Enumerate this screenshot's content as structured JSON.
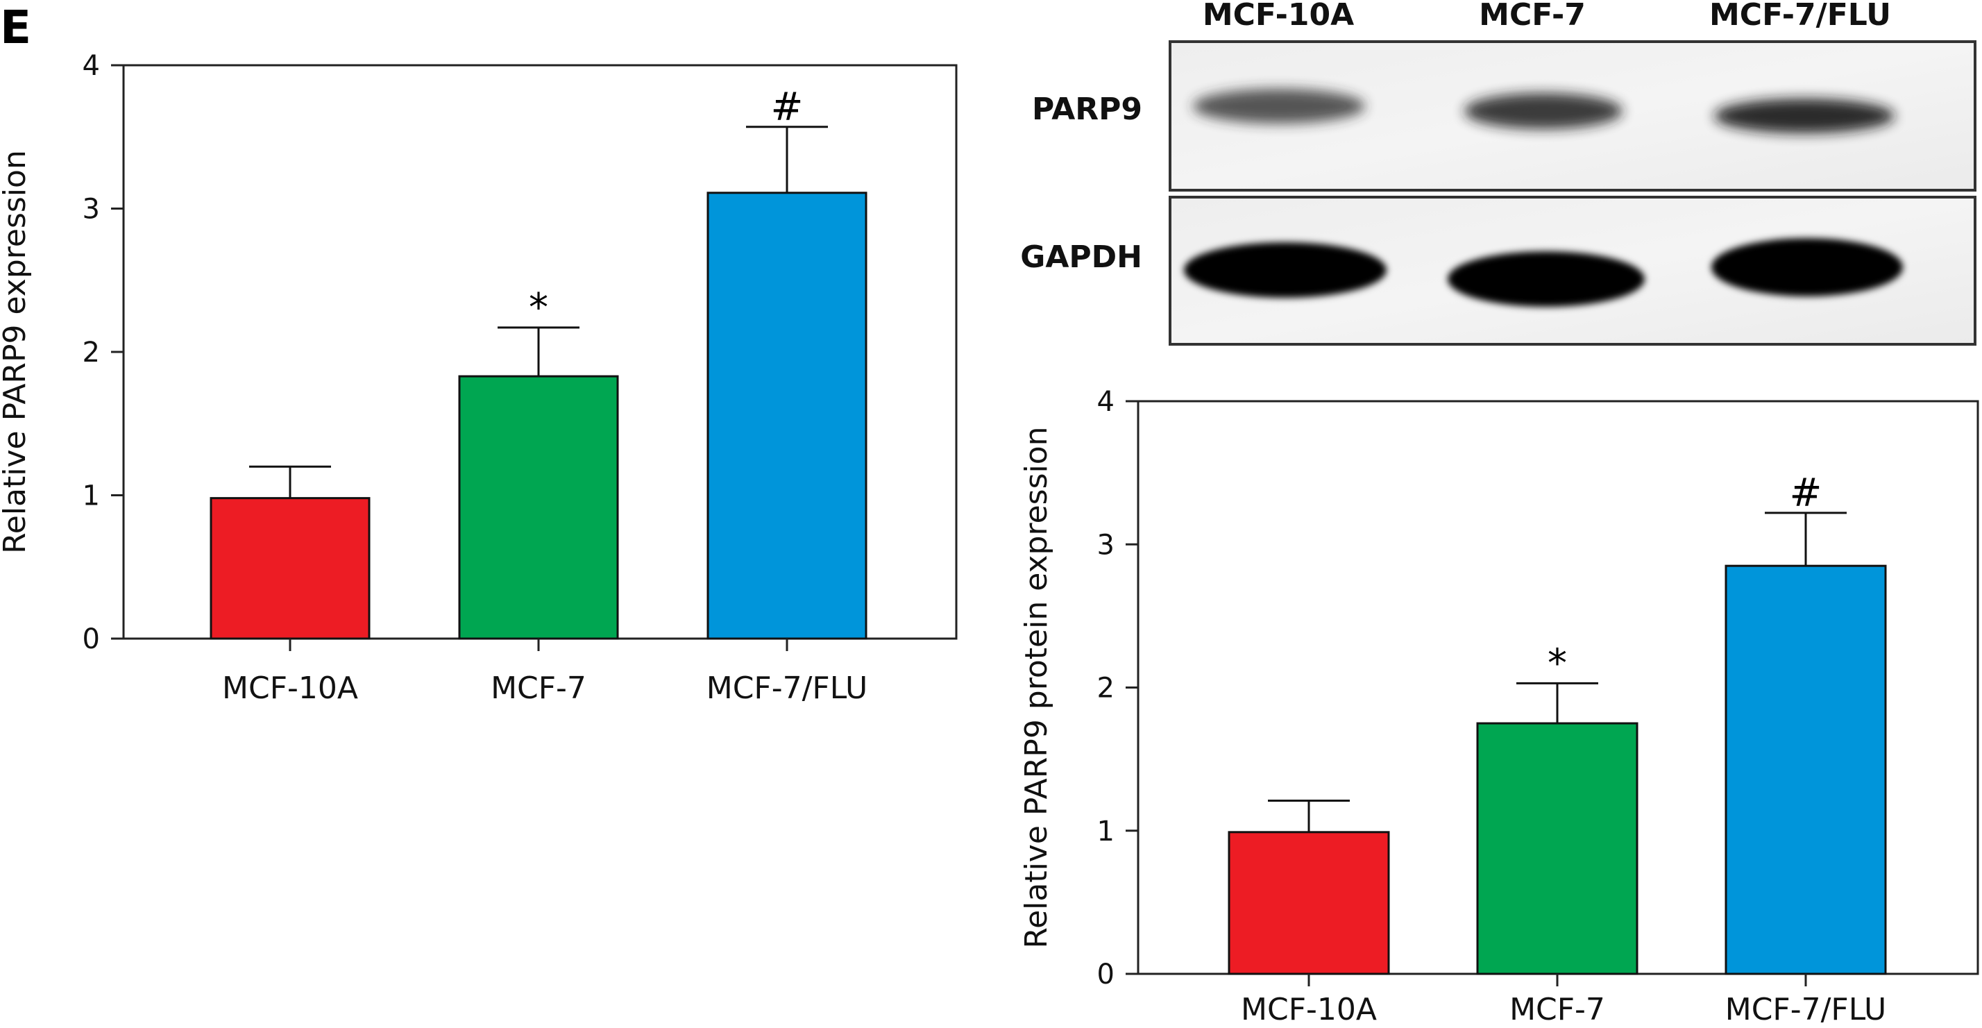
{
  "panel_label": "E",
  "blot": {
    "lanes": [
      "MCF-10A",
      "MCF-7",
      "MCF-7/FLU"
    ],
    "proteins": [
      "PARP9",
      "GAPDH"
    ]
  },
  "chart_data": [
    {
      "type": "bar",
      "categories": [
        "MCF-10A",
        "MCF-7",
        "MCF-7/FLU"
      ],
      "values": [
        0.98,
        1.83,
        3.11
      ],
      "error": [
        0.22,
        0.34,
        0.46
      ],
      "significance": [
        "",
        "*",
        "#"
      ],
      "colors": [
        "#ed1c24",
        "#00a651",
        "#0095da"
      ],
      "title": "",
      "xlabel": "",
      "ylabel": "Relative PARP9 expression",
      "ylim": [
        0,
        4
      ],
      "yticks": [
        0,
        1,
        2,
        3,
        4
      ],
      "grid": false
    },
    {
      "type": "bar",
      "categories": [
        "MCF-10A",
        "MCF-7",
        "MCF-7/FLU"
      ],
      "values": [
        0.99,
        1.75,
        2.85
      ],
      "error": [
        0.22,
        0.28,
        0.37
      ],
      "significance": [
        "",
        "*",
        "#"
      ],
      "colors": [
        "#ed1c24",
        "#00a651",
        "#0095da"
      ],
      "title": "",
      "xlabel": "",
      "ylabel": "Relative PARP9 protein expression",
      "ylim": [
        0,
        4
      ],
      "yticks": [
        0,
        1,
        2,
        3,
        4
      ],
      "grid": false
    }
  ]
}
